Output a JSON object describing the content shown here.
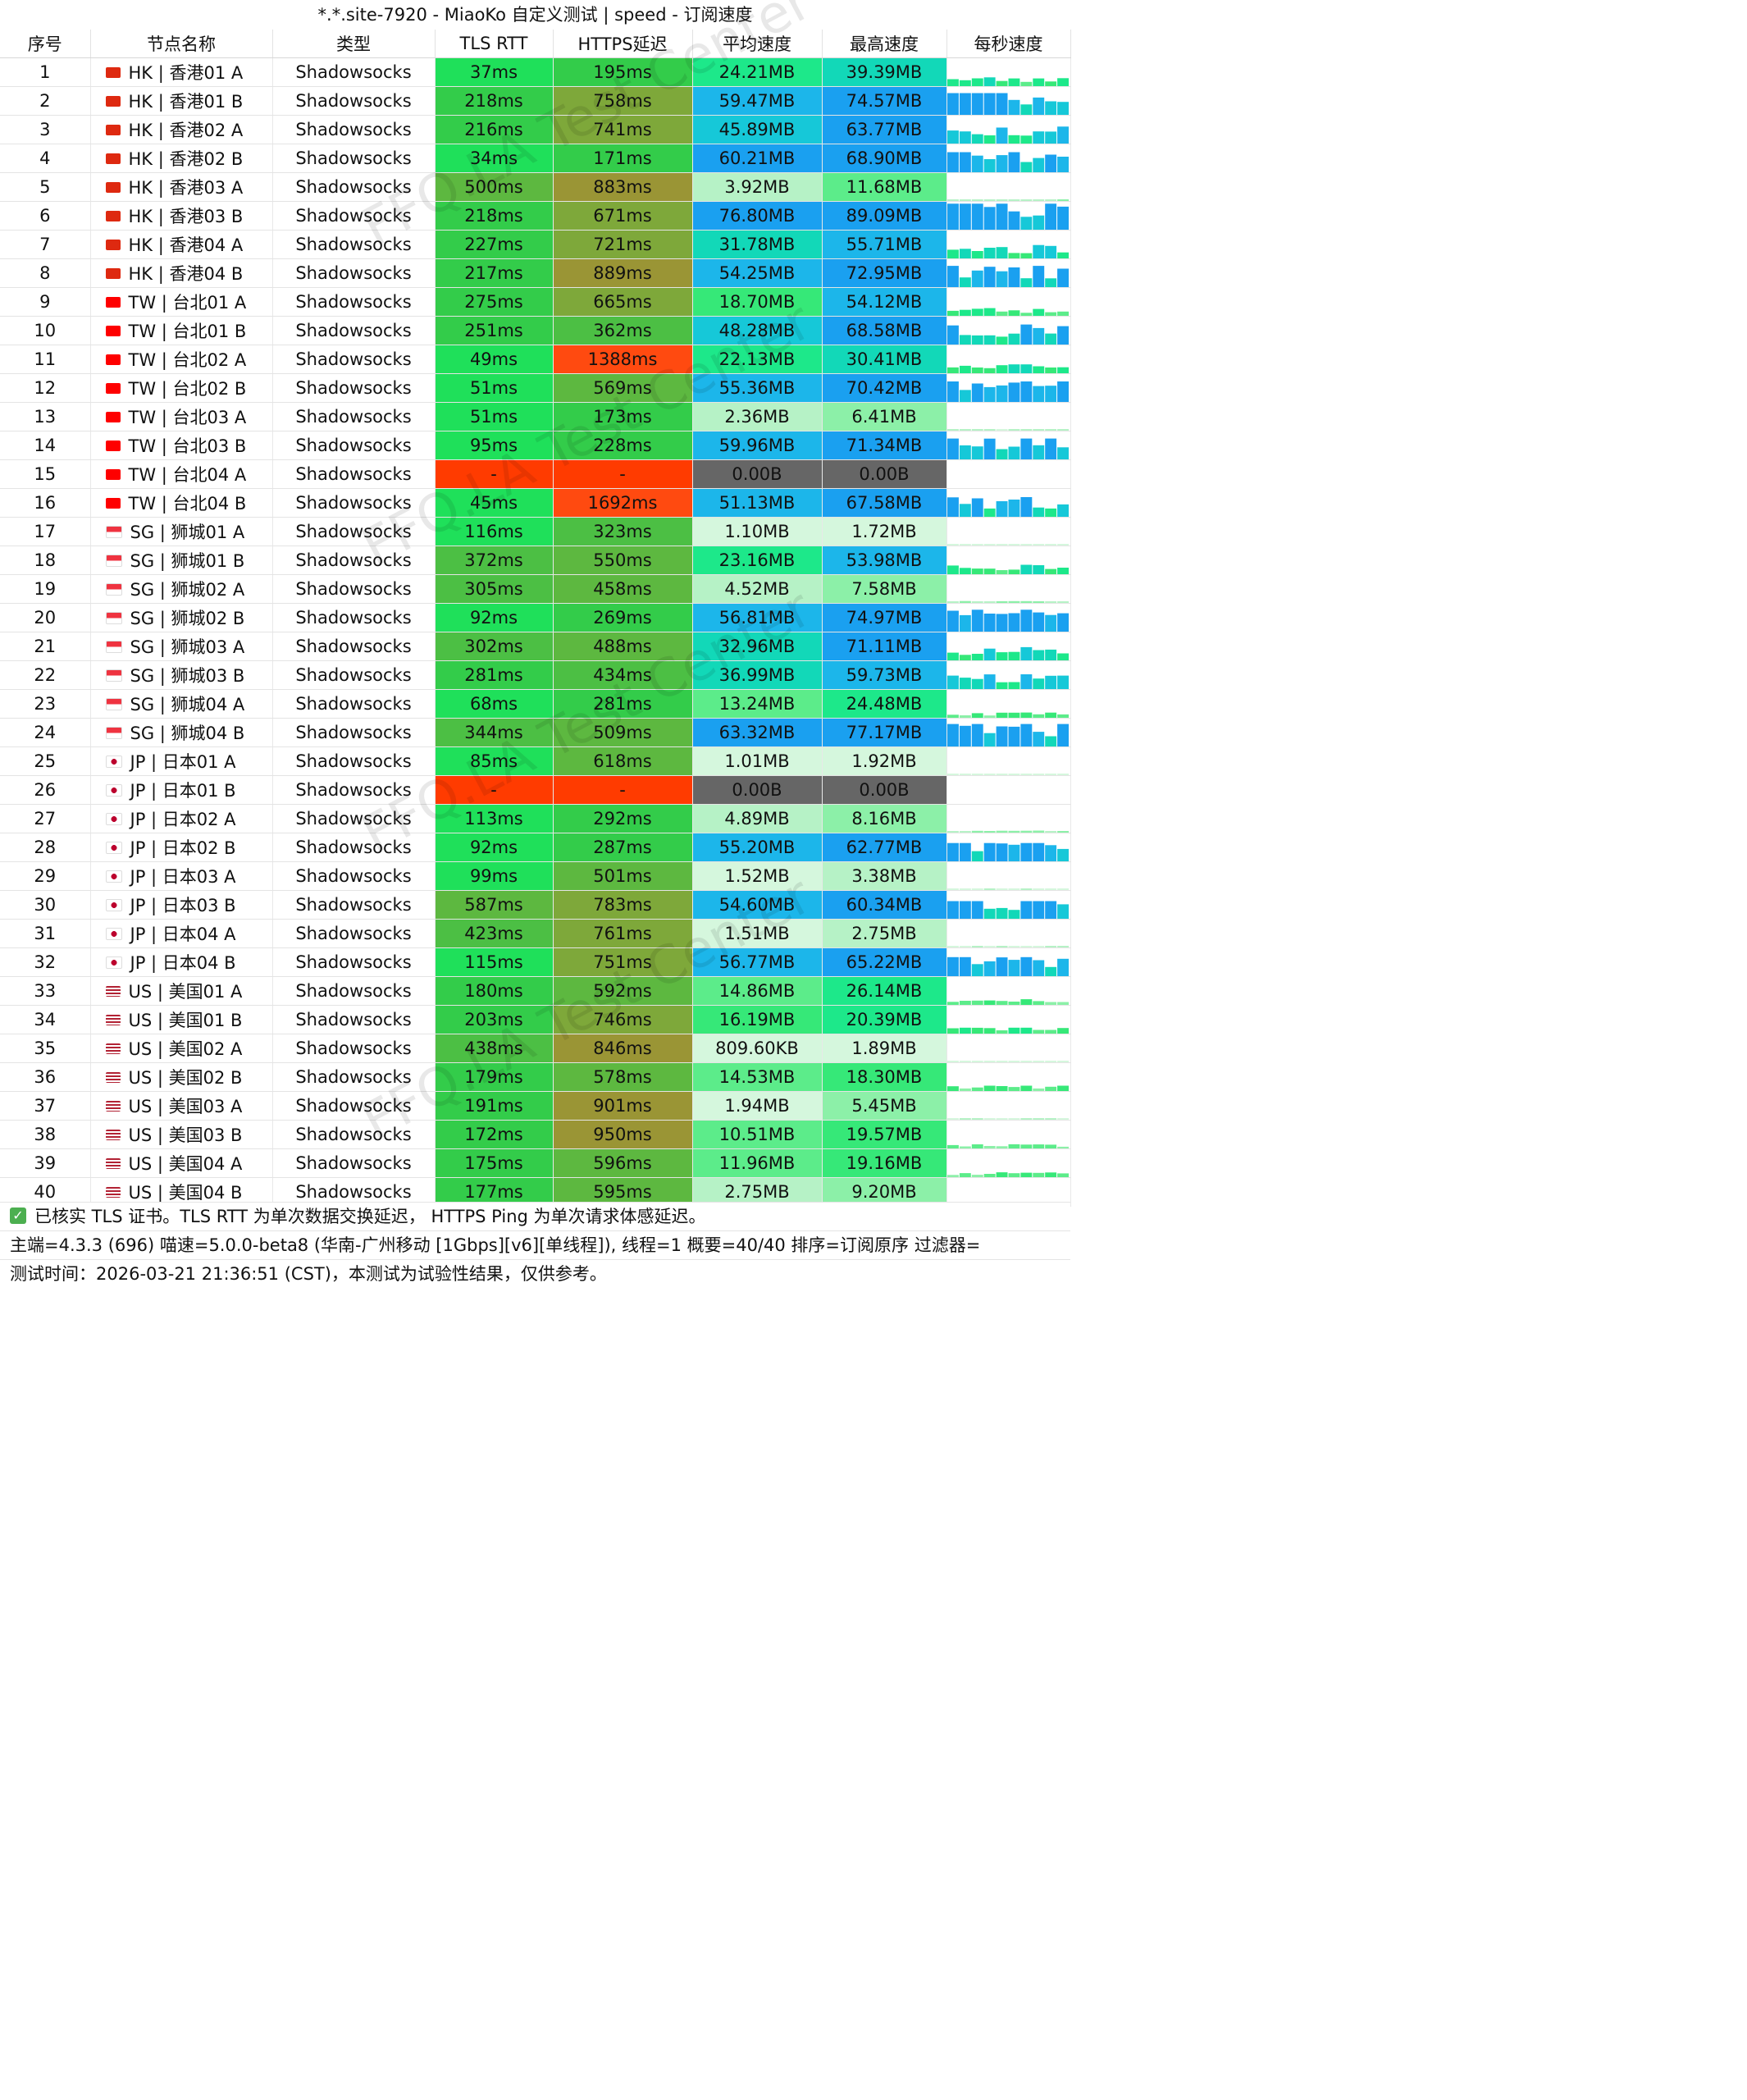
{
  "window_title": "*.*.site-7920 - MiaoKo 自定义测试 | speed - 订阅速度",
  "headers": [
    "序号",
    "节点名称",
    "类型",
    "TLS RTT",
    "HTTPS延迟",
    "平均速度",
    "最高速度",
    "每秒速度"
  ],
  "rows": [
    {
      "id": "1",
      "region": "HK",
      "name": "HK | 香港01 A",
      "type": "Shadowsocks",
      "tls": "37ms",
      "https": "195ms",
      "avg": "24.21MB",
      "max": "39.39MB",
      "avg_mb": 24.21,
      "max_mb": 39.39,
      "tls_ms": 37,
      "https_ms": 195
    },
    {
      "id": "2",
      "region": "HK",
      "name": "HK | 香港01 B",
      "type": "Shadowsocks",
      "tls": "218ms",
      "https": "758ms",
      "avg": "59.47MB",
      "max": "74.57MB",
      "avg_mb": 59.47,
      "max_mb": 74.57,
      "tls_ms": 218,
      "https_ms": 758
    },
    {
      "id": "3",
      "region": "HK",
      "name": "HK | 香港02 A",
      "type": "Shadowsocks",
      "tls": "216ms",
      "https": "741ms",
      "avg": "45.89MB",
      "max": "63.77MB",
      "avg_mb": 45.89,
      "max_mb": 63.77,
      "tls_ms": 216,
      "https_ms": 741
    },
    {
      "id": "4",
      "region": "HK",
      "name": "HK | 香港02 B",
      "type": "Shadowsocks",
      "tls": "34ms",
      "https": "171ms",
      "avg": "60.21MB",
      "max": "68.90MB",
      "avg_mb": 60.21,
      "max_mb": 68.9,
      "tls_ms": 34,
      "https_ms": 171
    },
    {
      "id": "5",
      "region": "HK",
      "name": "HK | 香港03 A",
      "type": "Shadowsocks",
      "tls": "500ms",
      "https": "883ms",
      "avg": "3.92MB",
      "max": "11.68MB",
      "avg_mb": 3.92,
      "max_mb": 11.68,
      "tls_ms": 500,
      "https_ms": 883
    },
    {
      "id": "6",
      "region": "HK",
      "name": "HK | 香港03 B",
      "type": "Shadowsocks",
      "tls": "218ms",
      "https": "671ms",
      "avg": "76.80MB",
      "max": "89.09MB",
      "avg_mb": 76.8,
      "max_mb": 89.09,
      "tls_ms": 218,
      "https_ms": 671
    },
    {
      "id": "7",
      "region": "HK",
      "name": "HK | 香港04 A",
      "type": "Shadowsocks",
      "tls": "227ms",
      "https": "721ms",
      "avg": "31.78MB",
      "max": "55.71MB",
      "avg_mb": 31.78,
      "max_mb": 55.71,
      "tls_ms": 227,
      "https_ms": 721
    },
    {
      "id": "8",
      "region": "HK",
      "name": "HK | 香港04 B",
      "type": "Shadowsocks",
      "tls": "217ms",
      "https": "889ms",
      "avg": "54.25MB",
      "max": "72.95MB",
      "avg_mb": 54.25,
      "max_mb": 72.95,
      "tls_ms": 217,
      "https_ms": 889
    },
    {
      "id": "9",
      "region": "TW",
      "name": "TW | 台北01 A",
      "type": "Shadowsocks",
      "tls": "275ms",
      "https": "665ms",
      "avg": "18.70MB",
      "max": "54.12MB",
      "avg_mb": 18.7,
      "max_mb": 54.12,
      "tls_ms": 275,
      "https_ms": 665
    },
    {
      "id": "10",
      "region": "TW",
      "name": "TW | 台北01 B",
      "type": "Shadowsocks",
      "tls": "251ms",
      "https": "362ms",
      "avg": "48.28MB",
      "max": "68.58MB",
      "avg_mb": 48.28,
      "max_mb": 68.58,
      "tls_ms": 251,
      "https_ms": 362
    },
    {
      "id": "11",
      "region": "TW",
      "name": "TW | 台北02 A",
      "type": "Shadowsocks",
      "tls": "49ms",
      "https": "1388ms",
      "avg": "22.13MB",
      "max": "30.41MB",
      "avg_mb": 22.13,
      "max_mb": 30.41,
      "tls_ms": 49,
      "https_ms": 1388
    },
    {
      "id": "12",
      "region": "TW",
      "name": "TW | 台北02 B",
      "type": "Shadowsocks",
      "tls": "51ms",
      "https": "569ms",
      "avg": "55.36MB",
      "max": "70.42MB",
      "avg_mb": 55.36,
      "max_mb": 70.42,
      "tls_ms": 51,
      "https_ms": 569
    },
    {
      "id": "13",
      "region": "TW",
      "name": "TW | 台北03 A",
      "type": "Shadowsocks",
      "tls": "51ms",
      "https": "173ms",
      "avg": "2.36MB",
      "max": "6.41MB",
      "avg_mb": 2.36,
      "max_mb": 6.41,
      "tls_ms": 51,
      "https_ms": 173
    },
    {
      "id": "14",
      "region": "TW",
      "name": "TW | 台北03 B",
      "type": "Shadowsocks",
      "tls": "95ms",
      "https": "228ms",
      "avg": "59.96MB",
      "max": "71.34MB",
      "avg_mb": 59.96,
      "max_mb": 71.34,
      "tls_ms": 95,
      "https_ms": 228
    },
    {
      "id": "15",
      "region": "TW",
      "name": "TW | 台北04 A",
      "type": "Shadowsocks",
      "tls": "-",
      "https": "-",
      "avg": "0.00B",
      "max": "0.00B",
      "avg_mb": 0,
      "max_mb": 0,
      "tls_ms": -1,
      "https_ms": -1
    },
    {
      "id": "16",
      "region": "TW",
      "name": "TW | 台北04 B",
      "type": "Shadowsocks",
      "tls": "45ms",
      "https": "1692ms",
      "avg": "51.13MB",
      "max": "67.58MB",
      "avg_mb": 51.13,
      "max_mb": 67.58,
      "tls_ms": 45,
      "https_ms": 1692
    },
    {
      "id": "17",
      "region": "SG",
      "name": "SG | 狮城01 A",
      "type": "Shadowsocks",
      "tls": "116ms",
      "https": "323ms",
      "avg": "1.10MB",
      "max": "1.72MB",
      "avg_mb": 1.1,
      "max_mb": 1.72,
      "tls_ms": 116,
      "https_ms": 323
    },
    {
      "id": "18",
      "region": "SG",
      "name": "SG | 狮城01 B",
      "type": "Shadowsocks",
      "tls": "372ms",
      "https": "550ms",
      "avg": "23.16MB",
      "max": "53.98MB",
      "avg_mb": 23.16,
      "max_mb": 53.98,
      "tls_ms": 372,
      "https_ms": 550
    },
    {
      "id": "19",
      "region": "SG",
      "name": "SG | 狮城02 A",
      "type": "Shadowsocks",
      "tls": "305ms",
      "https": "458ms",
      "avg": "4.52MB",
      "max": "7.58MB",
      "avg_mb": 4.52,
      "max_mb": 7.58,
      "tls_ms": 305,
      "https_ms": 458
    },
    {
      "id": "20",
      "region": "SG",
      "name": "SG | 狮城02 B",
      "type": "Shadowsocks",
      "tls": "92ms",
      "https": "269ms",
      "avg": "56.81MB",
      "max": "74.97MB",
      "avg_mb": 56.81,
      "max_mb": 74.97,
      "tls_ms": 92,
      "https_ms": 269
    },
    {
      "id": "21",
      "region": "SG",
      "name": "SG | 狮城03 A",
      "type": "Shadowsocks",
      "tls": "302ms",
      "https": "488ms",
      "avg": "32.96MB",
      "max": "71.11MB",
      "avg_mb": 32.96,
      "max_mb": 71.11,
      "tls_ms": 302,
      "https_ms": 488
    },
    {
      "id": "22",
      "region": "SG",
      "name": "SG | 狮城03 B",
      "type": "Shadowsocks",
      "tls": "281ms",
      "https": "434ms",
      "avg": "36.99MB",
      "max": "59.73MB",
      "avg_mb": 36.99,
      "max_mb": 59.73,
      "tls_ms": 281,
      "https_ms": 434
    },
    {
      "id": "23",
      "region": "SG",
      "name": "SG | 狮城04 A",
      "type": "Shadowsocks",
      "tls": "68ms",
      "https": "281ms",
      "avg": "13.24MB",
      "max": "24.48MB",
      "avg_mb": 13.24,
      "max_mb": 24.48,
      "tls_ms": 68,
      "https_ms": 281
    },
    {
      "id": "24",
      "region": "SG",
      "name": "SG | 狮城04 B",
      "type": "Shadowsocks",
      "tls": "344ms",
      "https": "509ms",
      "avg": "63.32MB",
      "max": "77.17MB",
      "avg_mb": 63.32,
      "max_mb": 77.17,
      "tls_ms": 344,
      "https_ms": 509
    },
    {
      "id": "25",
      "region": "JP",
      "name": "JP | 日本01 A",
      "type": "Shadowsocks",
      "tls": "85ms",
      "https": "618ms",
      "avg": "1.01MB",
      "max": "1.92MB",
      "avg_mb": 1.01,
      "max_mb": 1.92,
      "tls_ms": 85,
      "https_ms": 618
    },
    {
      "id": "26",
      "region": "JP",
      "name": "JP | 日本01 B",
      "type": "Shadowsocks",
      "tls": "-",
      "https": "-",
      "avg": "0.00B",
      "max": "0.00B",
      "avg_mb": 0,
      "max_mb": 0,
      "tls_ms": -1,
      "https_ms": -1
    },
    {
      "id": "27",
      "region": "JP",
      "name": "JP | 日本02 A",
      "type": "Shadowsocks",
      "tls": "113ms",
      "https": "292ms",
      "avg": "4.89MB",
      "max": "8.16MB",
      "avg_mb": 4.89,
      "max_mb": 8.16,
      "tls_ms": 113,
      "https_ms": 292
    },
    {
      "id": "28",
      "region": "JP",
      "name": "JP | 日本02 B",
      "type": "Shadowsocks",
      "tls": "92ms",
      "https": "287ms",
      "avg": "55.20MB",
      "max": "62.77MB",
      "avg_mb": 55.2,
      "max_mb": 62.77,
      "tls_ms": 92,
      "https_ms": 287
    },
    {
      "id": "29",
      "region": "JP",
      "name": "JP | 日本03 A",
      "type": "Shadowsocks",
      "tls": "99ms",
      "https": "501ms",
      "avg": "1.52MB",
      "max": "3.38MB",
      "avg_mb": 1.52,
      "max_mb": 3.38,
      "tls_ms": 99,
      "https_ms": 501
    },
    {
      "id": "30",
      "region": "JP",
      "name": "JP | 日本03 B",
      "type": "Shadowsocks",
      "tls": "587ms",
      "https": "783ms",
      "avg": "54.60MB",
      "max": "60.34MB",
      "avg_mb": 54.6,
      "max_mb": 60.34,
      "tls_ms": 587,
      "https_ms": 783
    },
    {
      "id": "31",
      "region": "JP",
      "name": "JP | 日本04 A",
      "type": "Shadowsocks",
      "tls": "423ms",
      "https": "761ms",
      "avg": "1.51MB",
      "max": "2.75MB",
      "avg_mb": 1.51,
      "max_mb": 2.75,
      "tls_ms": 423,
      "https_ms": 761
    },
    {
      "id": "32",
      "region": "JP",
      "name": "JP | 日本04 B",
      "type": "Shadowsocks",
      "tls": "115ms",
      "https": "751ms",
      "avg": "56.77MB",
      "max": "65.22MB",
      "avg_mb": 56.77,
      "max_mb": 65.22,
      "tls_ms": 115,
      "https_ms": 751
    },
    {
      "id": "33",
      "region": "US",
      "name": "US | 美国01 A",
      "type": "Shadowsocks",
      "tls": "180ms",
      "https": "592ms",
      "avg": "14.86MB",
      "max": "26.14MB",
      "avg_mb": 14.86,
      "max_mb": 26.14,
      "tls_ms": 180,
      "https_ms": 592
    },
    {
      "id": "34",
      "region": "US",
      "name": "US | 美国01 B",
      "type": "Shadowsocks",
      "tls": "203ms",
      "https": "746ms",
      "avg": "16.19MB",
      "max": "20.39MB",
      "avg_mb": 16.19,
      "max_mb": 20.39,
      "tls_ms": 203,
      "https_ms": 746
    },
    {
      "id": "35",
      "region": "US",
      "name": "US | 美国02 A",
      "type": "Shadowsocks",
      "tls": "438ms",
      "https": "846ms",
      "avg": "809.60KB",
      "max": "1.89MB",
      "avg_mb": 0.79,
      "max_mb": 1.89,
      "tls_ms": 438,
      "https_ms": 846
    },
    {
      "id": "36",
      "region": "US",
      "name": "US | 美国02 B",
      "type": "Shadowsocks",
      "tls": "179ms",
      "https": "578ms",
      "avg": "14.53MB",
      "max": "18.30MB",
      "avg_mb": 14.53,
      "max_mb": 18.3,
      "tls_ms": 179,
      "https_ms": 578
    },
    {
      "id": "37",
      "region": "US",
      "name": "US | 美国03 A",
      "type": "Shadowsocks",
      "tls": "191ms",
      "https": "901ms",
      "avg": "1.94MB",
      "max": "5.45MB",
      "avg_mb": 1.94,
      "max_mb": 5.45,
      "tls_ms": 191,
      "https_ms": 901
    },
    {
      "id": "38",
      "region": "US",
      "name": "US | 美国03 B",
      "type": "Shadowsocks",
      "tls": "172ms",
      "https": "950ms",
      "avg": "10.51MB",
      "max": "19.57MB",
      "avg_mb": 10.51,
      "max_mb": 19.57,
      "tls_ms": 172,
      "https_ms": 950
    },
    {
      "id": "39",
      "region": "US",
      "name": "US | 美国04 A",
      "type": "Shadowsocks",
      "tls": "175ms",
      "https": "596ms",
      "avg": "11.96MB",
      "max": "19.16MB",
      "avg_mb": 11.96,
      "max_mb": 19.16,
      "tls_ms": 175,
      "https_ms": 596
    },
    {
      "id": "40",
      "region": "US",
      "name": "US | 美国04 B",
      "type": "Shadowsocks",
      "tls": "177ms",
      "https": "595ms",
      "avg": "2.75MB",
      "max": "9.20MB",
      "avg_mb": 2.75,
      "max_mb": 9.2,
      "tls_ms": 177,
      "https_ms": 595
    }
  ],
  "footer": {
    "line1": "已核实 TLS 证书。TLS RTT 为单次数据交换延迟， HTTPS Ping 为单次请求体感延迟。",
    "line2": "主端=4.3.3 (696) 喵速=5.0.0-beta8 (华南-广州移动 [1Gbps][v6][单线程]), 线程=1 概要=40/40 排序=订阅原序 过滤器=",
    "line3": "测试时间：2026-03-21 21:36:51 (CST)，本测试为试验性结果，仅供参考。"
  },
  "watermark_text": "FFQ.LA Test Center",
  "colors": {
    "fail": "#ff3b00",
    "zero": "#666666"
  }
}
